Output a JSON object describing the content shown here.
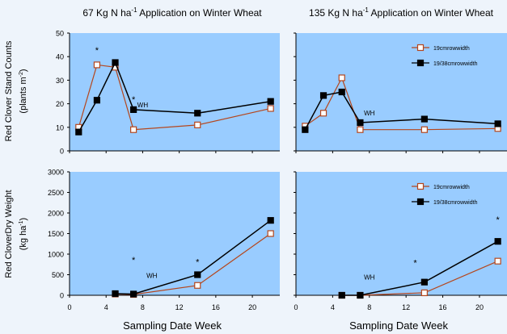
{
  "colors": {
    "page_background": "#eef4fb",
    "plot_background": "#99ccff",
    "series_19cm": "#b5461c",
    "series_19_38cm": "#000000"
  },
  "figure": {
    "row_labels": {
      "top": [
        "Red Clover Stand Counts",
        "(plants m",
        "-2",
        ")"
      ],
      "bottom": [
        "Red CloverDry Weight",
        "(kg ha",
        "-1",
        ")"
      ]
    },
    "xlabel": "Sampling Date Week"
  },
  "chart_data": [
    {
      "id": "stand-67",
      "type": "line",
      "title": [
        "67 Kg N ha",
        "-1",
        " Application on Winter Wheat"
      ],
      "ylim": [
        0,
        50
      ],
      "yticks": [
        0,
        10,
        20,
        30,
        40,
        50
      ],
      "xlim": [
        0,
        23
      ],
      "xticks": [
        0,
        4,
        8,
        12,
        16,
        20
      ],
      "show_xtick_labels": false,
      "series": [
        {
          "key": "19cm",
          "marker": "open-square",
          "x": [
            1,
            3,
            5,
            7,
            14,
            22
          ],
          "y": [
            10,
            36.5,
            35.5,
            9,
            11,
            18
          ]
        },
        {
          "key": "19_38cm",
          "marker": "filled-square",
          "x": [
            1,
            3,
            5,
            7,
            14,
            22
          ],
          "y": [
            8,
            21.5,
            37.5,
            17.5,
            16,
            21
          ]
        }
      ],
      "annotations": [
        {
          "text": "*",
          "x": 3,
          "y": 41.5
        },
        {
          "text": "*",
          "x": 7,
          "y": 20.5
        },
        {
          "text": "WH",
          "x": 8,
          "y": 18.5
        }
      ],
      "legend": null
    },
    {
      "id": "stand-135",
      "type": "line",
      "title": [
        "135 Kg N ha",
        "-1",
        " Application on Winter Wheat"
      ],
      "ylim": [
        0,
        50
      ],
      "yticks": [
        0,
        10,
        20,
        30,
        40,
        50
      ],
      "xlim": [
        0,
        23
      ],
      "xticks": [
        0,
        4,
        8,
        12,
        16,
        20
      ],
      "show_xtick_labels": false,
      "series": [
        {
          "key": "19cm",
          "marker": "open-square",
          "x": [
            1,
            3,
            5,
            7,
            14,
            22
          ],
          "y": [
            10.5,
            16,
            31,
            9,
            9,
            9.5
          ]
        },
        {
          "key": "19_38cm",
          "marker": "filled-square",
          "x": [
            1,
            3,
            5,
            7,
            14,
            22
          ],
          "y": [
            9,
            23.5,
            25,
            12,
            13.5,
            11.5
          ]
        }
      ],
      "annotations": [
        {
          "text": "WH",
          "x": 8,
          "y": 15
        }
      ],
      "legend": {
        "placement": "top-right",
        "entries": [
          {
            "key": "19cm",
            "label": "19cmrowwidth"
          },
          {
            "key": "19_38cm",
            "label": "19/38cmrowwidth"
          }
        ]
      }
    },
    {
      "id": "dry-67",
      "type": "line",
      "title": null,
      "ylim": [
        0,
        3000
      ],
      "yticks": [
        0,
        500,
        1000,
        1500,
        2000,
        2500,
        3000
      ],
      "xlim": [
        0,
        23
      ],
      "xticks": [
        0,
        4,
        8,
        12,
        16,
        20
      ],
      "show_xtick_labels": true,
      "series": [
        {
          "key": "19cm",
          "marker": "open-square",
          "x": [
            5,
            7,
            14,
            22
          ],
          "y": [
            30,
            20,
            240,
            1500
          ]
        },
        {
          "key": "19_38cm",
          "marker": "filled-square",
          "x": [
            5,
            7,
            14,
            22
          ],
          "y": [
            40,
            30,
            500,
            1820
          ]
        }
      ],
      "annotations": [
        {
          "text": "*",
          "x": 7,
          "y": 780
        },
        {
          "text": "WH",
          "x": 9,
          "y": 420
        },
        {
          "text": "*",
          "x": 14,
          "y": 740
        }
      ],
      "legend": null
    },
    {
      "id": "dry-135",
      "type": "line",
      "title": null,
      "ylim": [
        0,
        3000
      ],
      "yticks": [
        0,
        500,
        1000,
        1500,
        2000,
        2500,
        3000
      ],
      "xlim": [
        0,
        23
      ],
      "xticks": [
        0,
        4,
        8,
        12,
        16,
        20
      ],
      "show_xtick_labels": true,
      "series": [
        {
          "key": "19cm",
          "marker": "open-square",
          "x": [
            5,
            7,
            14,
            22
          ],
          "y": [
            0,
            0,
            60,
            830
          ]
        },
        {
          "key": "19_38cm",
          "marker": "filled-square",
          "x": [
            5,
            7,
            14,
            22
          ],
          "y": [
            0,
            0,
            320,
            1310
          ]
        }
      ],
      "annotations": [
        {
          "text": "WH",
          "x": 8,
          "y": 380
        },
        {
          "text": "*",
          "x": 13,
          "y": 720
        },
        {
          "text": "*",
          "x": 22,
          "y": 1760
        }
      ],
      "legend": {
        "placement": "top-right",
        "entries": [
          {
            "key": "19cm",
            "label": "19cmrowwidth"
          },
          {
            "key": "19_38cm",
            "label": "19/38cmrowwidth"
          }
        ]
      }
    }
  ]
}
